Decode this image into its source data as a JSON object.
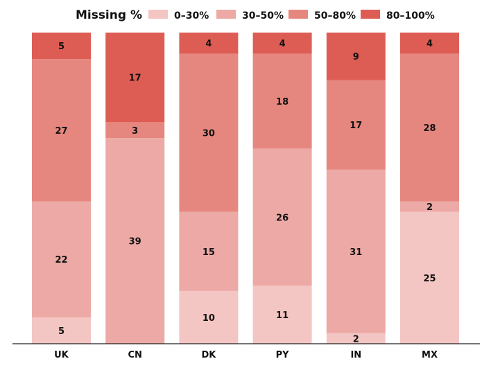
{
  "chart_data": {
    "type": "bar",
    "stacked": true,
    "legend_title": "Missing %",
    "legend_position": "top",
    "categories": [
      "UK",
      "CN",
      "DK",
      "PY",
      "IN",
      "MX"
    ],
    "series": [
      {
        "name": "0–30%",
        "color": "#f4c6c3",
        "values": [
          5,
          0,
          10,
          11,
          2,
          25
        ]
      },
      {
        "name": "30–50%",
        "color": "#eca9a5",
        "values": [
          22,
          39,
          15,
          26,
          31,
          2
        ]
      },
      {
        "name": "50–80%",
        "color": "#e6877f",
        "values": [
          27,
          3,
          30,
          18,
          17,
          28
        ]
      },
      {
        "name": "80–100%",
        "color": "#dd5d55",
        "values": [
          5,
          17,
          4,
          4,
          9,
          4
        ]
      }
    ],
    "ylim": [
      0,
      59
    ],
    "grid": false,
    "xlabel": "",
    "ylabel": ""
  }
}
